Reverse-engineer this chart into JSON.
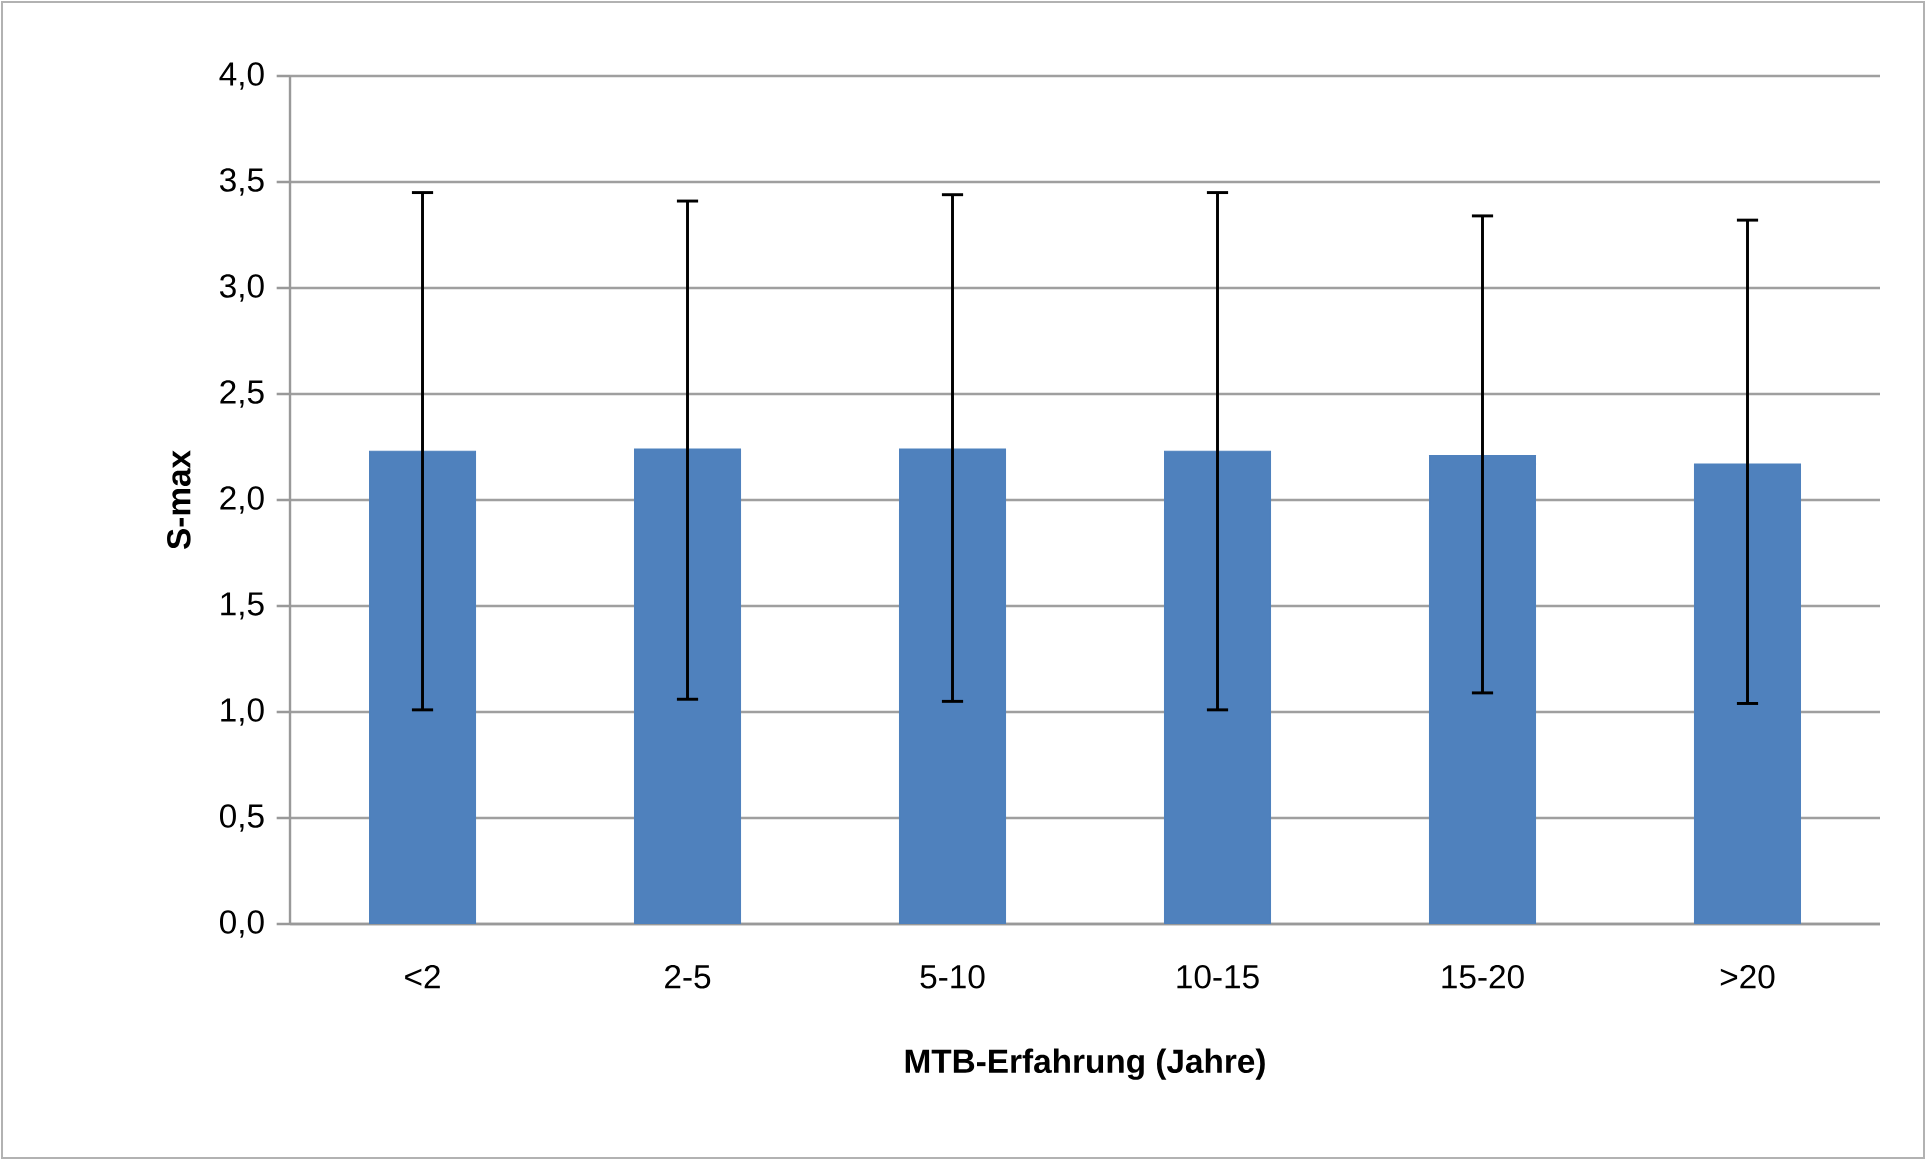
{
  "chart_data": {
    "type": "bar",
    "xlabel": "MTB-Erfahrung (Jahre)",
    "ylabel": "S-max",
    "categories": [
      "<2",
      "2-5",
      "5-10",
      "10-15",
      "15-20",
      ">20"
    ],
    "values": [
      2.23,
      2.24,
      2.24,
      2.23,
      2.21,
      2.17
    ],
    "errors": [
      [
        1.01,
        3.45
      ],
      [
        1.06,
        3.41
      ],
      [
        1.05,
        3.44
      ],
      [
        1.01,
        3.45
      ],
      [
        1.09,
        3.34
      ],
      [
        1.04,
        3.32
      ]
    ],
    "color": "#4f81bd",
    "ylim": [
      0,
      4
    ],
    "yticks": [
      {
        "value": 0,
        "label": "0,0"
      },
      {
        "value": 0.5,
        "label": "0,5"
      },
      {
        "value": 1,
        "label": "1,0"
      },
      {
        "value": 1.5,
        "label": "1,5"
      },
      {
        "value": 2,
        "label": "2,0"
      },
      {
        "value": 2.5,
        "label": "2,5"
      },
      {
        "value": 3,
        "label": "3,0"
      },
      {
        "value": 3.5,
        "label": "3,5"
      },
      {
        "value": 4,
        "label": "4,0"
      }
    ],
    "grid": "y"
  }
}
